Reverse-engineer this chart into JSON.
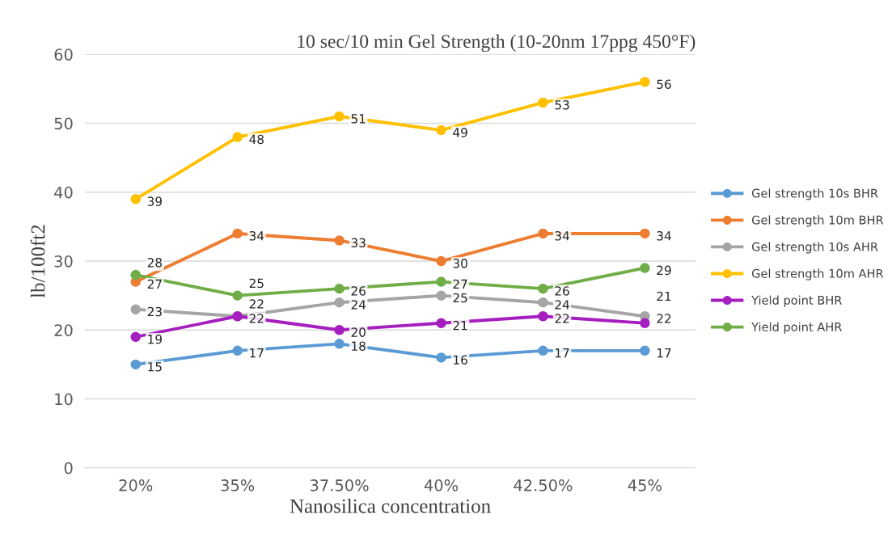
{
  "chart_data": {
    "type": "line",
    "title": "10 sec/10 min Gel Strength (10-20nm 17ppg 450°F)",
    "xlabel": "Nanosilica concentration",
    "ylabel": "lb/100ft2",
    "categories": [
      "20%",
      "35%",
      "37.50%",
      "40%",
      "42.50%",
      "45%"
    ],
    "series": [
      {
        "name": "Gel strength 10s BHR",
        "color": "#5b9bd5",
        "values": [
          15,
          17,
          18,
          16,
          17,
          17
        ]
      },
      {
        "name": "Gel strength 10m BHR",
        "color": "#ed7d31",
        "values": [
          27,
          34,
          33,
          30,
          34,
          34
        ]
      },
      {
        "name": "Gel strength 10s AHR",
        "color": "#a5a5a5",
        "values": [
          23,
          22,
          24,
          25,
          24,
          22
        ]
      },
      {
        "name": "Gel strength 10m AHR",
        "color": "#ffc000",
        "values": [
          39,
          48,
          51,
          49,
          53,
          56
        ]
      },
      {
        "name": "Yield point BHR",
        "color": "#a51fbf",
        "values": [
          19,
          22,
          20,
          21,
          22,
          21
        ]
      },
      {
        "name": "Yield point AHR",
        "color": "#70ad47",
        "values": [
          28,
          25,
          26,
          27,
          26,
          29
        ]
      }
    ],
    "ylim": [
      0,
      60
    ],
    "yticks": [
      0,
      10,
      20,
      30,
      40,
      50,
      60
    ],
    "grid": "y",
    "legend": "right",
    "marker": "circle",
    "line_style": "solid",
    "data_labels": true
  }
}
